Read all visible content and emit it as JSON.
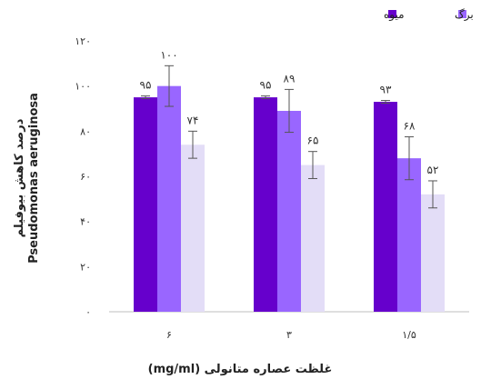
{
  "chart_data": {
    "type": "bar",
    "categories": [
      "۶",
      "۳",
      "۱/۵"
    ],
    "series": [
      {
        "name": "میوه",
        "color": "#6600CC",
        "values": [
          95,
          95,
          93
        ],
        "errors": [
          0.6,
          0.6,
          0.6
        ],
        "labels": [
          "۹۵",
          "۹۵",
          "۹۳"
        ]
      },
      {
        "name": "برگ",
        "color": "#9966FF",
        "values": [
          100,
          89,
          68
        ],
        "errors": [
          9,
          9.5,
          9.5
        ],
        "labels": [
          "۱۰۰",
          "۸۹",
          "۶۸"
        ]
      },
      {
        "name": "",
        "color": "#E3DDF7",
        "values": [
          74,
          65,
          52
        ],
        "errors": [
          6,
          6,
          6
        ],
        "labels": [
          "۷۴",
          "۶۵",
          "۵۲"
        ]
      }
    ],
    "ylim": [
      0,
      120
    ],
    "yticks": [
      0,
      20,
      40,
      60,
      80,
      100,
      120
    ],
    "ytick_labels": [
      "۰",
      "۲۰",
      "۴۰",
      "۶۰",
      "۸۰",
      "۱۰۰",
      "۱۲۰"
    ],
    "ylabel_line1": "درصد کاهش بیوفیلم",
    "ylabel_line2": "Pseudomonas aeruginosa",
    "xlabel": "غلظت عصاره متانولی (mg/ml)",
    "grid": false,
    "legend_position": "top-right"
  }
}
